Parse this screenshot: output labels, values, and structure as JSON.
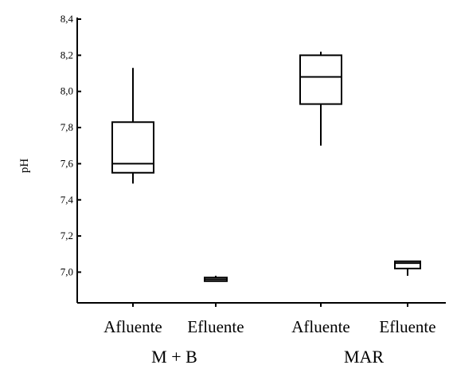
{
  "chart_data": {
    "type": "boxplot",
    "title": "",
    "xlabel": "",
    "ylabel": "pH",
    "ylim": [
      6.83,
      8.4
    ],
    "yticks": [
      "7,0",
      "7,2",
      "7,4",
      "7,6",
      "7,8",
      "8,0",
      "8,2",
      "8,4"
    ],
    "grid": false,
    "groups": [
      "M + B",
      "MAR"
    ],
    "categories": [
      "Afluente",
      "Efluente",
      "Afluente",
      "Efluente"
    ],
    "boxes": [
      {
        "group": "M + B",
        "category": "Afluente",
        "min": 7.49,
        "q1": 7.55,
        "median": 7.6,
        "q3": 7.83,
        "max": 8.13
      },
      {
        "group": "M + B",
        "category": "Efluente",
        "min": 6.95,
        "q1": 6.95,
        "median": 6.96,
        "q3": 6.97,
        "max": 6.98
      },
      {
        "group": "MAR",
        "category": "Afluente",
        "min": 7.7,
        "q1": 7.93,
        "median": 8.08,
        "q3": 8.2,
        "max": 8.22
      },
      {
        "group": "MAR",
        "category": "Efluente",
        "min": 6.98,
        "q1": 7.02,
        "median": 7.05,
        "q3": 7.06,
        "max": 7.06
      }
    ]
  }
}
